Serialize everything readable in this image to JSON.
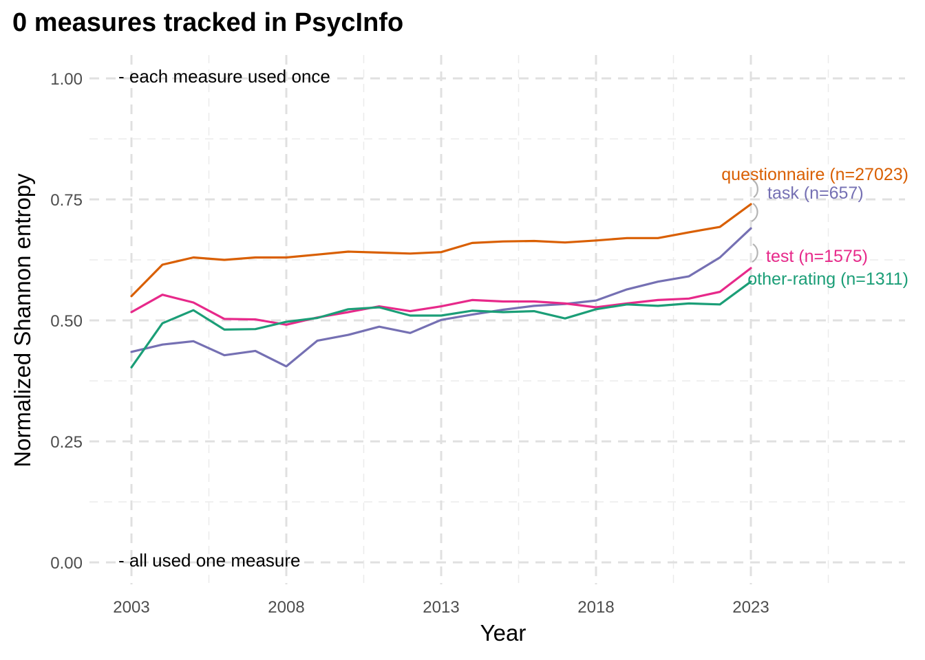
{
  "chart_data": {
    "type": "line",
    "title": "0 measures tracked in PsycInfo",
    "xlabel": "Year",
    "ylabel": "Normalized Shannon entropy",
    "xlim": [
      2003,
      2028
    ],
    "ylim": [
      0,
      1
    ],
    "x_ticks": [
      2003,
      2008,
      2013,
      2018,
      2023
    ],
    "x_tick_labels": [
      "2003",
      "2008",
      "2013",
      "2018",
      "2023"
    ],
    "y_ticks": [
      0,
      0.25,
      0.5,
      0.75,
      1
    ],
    "y_tick_labels": [
      "0.00",
      "0.25",
      "0.50",
      "0.75",
      "1.00"
    ],
    "grid": true,
    "legend": "direct labels at line ends",
    "annotations": [
      {
        "text": "- each measure used once",
        "x": 2003,
        "y": 1.0
      },
      {
        "text": "- all used one measure",
        "x": 2003,
        "y": 0.0
      }
    ],
    "x": [
      2003,
      2004,
      2005,
      2006,
      2007,
      2008,
      2009,
      2010,
      2011,
      2012,
      2013,
      2014,
      2015,
      2016,
      2017,
      2018,
      2019,
      2020,
      2021,
      2022,
      2023
    ],
    "series": [
      {
        "name": "questionnaire",
        "label": "questionnaire (n=27023)",
        "color": "#D95F02",
        "values": [
          0.55,
          0.615,
          0.63,
          0.625,
          0.63,
          0.63,
          0.636,
          0.642,
          0.64,
          0.638,
          0.641,
          0.66,
          0.663,
          0.664,
          0.661,
          0.665,
          0.67,
          0.67,
          0.682,
          0.693,
          0.74
        ]
      },
      {
        "name": "task",
        "label": "task (n=657)",
        "color": "#7570B3",
        "values": [
          0.435,
          0.45,
          0.457,
          0.428,
          0.437,
          0.405,
          0.458,
          0.47,
          0.487,
          0.474,
          0.501,
          0.512,
          0.522,
          0.53,
          0.534,
          0.541,
          0.564,
          0.58,
          0.591,
          0.63,
          0.69
        ]
      },
      {
        "name": "test",
        "label": "test (n=1575)",
        "color": "#E7298A",
        "values": [
          0.517,
          0.553,
          0.537,
          0.503,
          0.502,
          0.491,
          0.506,
          0.517,
          0.529,
          0.519,
          0.529,
          0.542,
          0.539,
          0.539,
          0.535,
          0.527,
          0.535,
          0.542,
          0.545,
          0.559,
          0.608
        ]
      },
      {
        "name": "other-rating",
        "label": "other-rating (n=1311)",
        "color": "#1B9E77",
        "values": [
          0.403,
          0.494,
          0.521,
          0.481,
          0.482,
          0.497,
          0.505,
          0.523,
          0.527,
          0.51,
          0.51,
          0.52,
          0.517,
          0.519,
          0.504,
          0.523,
          0.533,
          0.53,
          0.535,
          0.533,
          0.58
        ]
      }
    ]
  }
}
